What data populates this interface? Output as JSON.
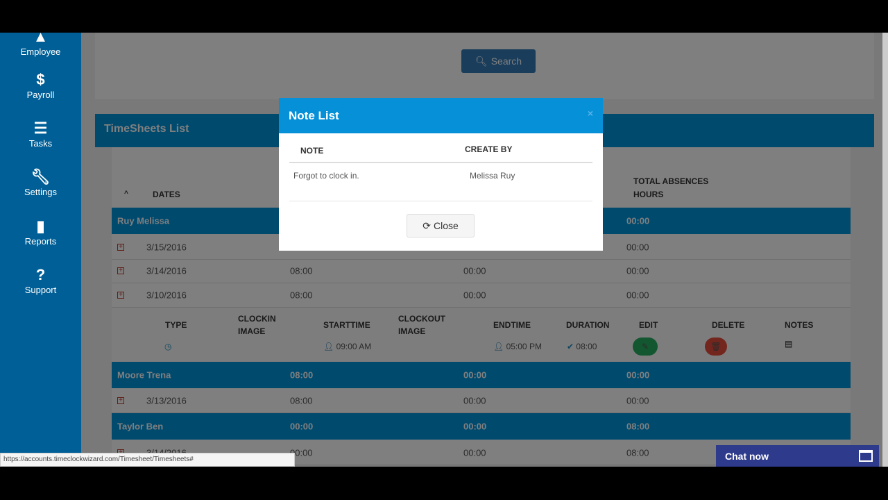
{
  "sidebar": {
    "items": [
      {
        "label": "Employee",
        "icon": "user-icon"
      },
      {
        "label": "Payroll",
        "icon": "dollar-icon"
      },
      {
        "label": "Tasks",
        "icon": "tasks-icon"
      },
      {
        "label": "Settings",
        "icon": "wrench-icon"
      },
      {
        "label": "Reports",
        "icon": "file-icon"
      },
      {
        "label": "Support",
        "icon": "question-icon"
      }
    ]
  },
  "search": {
    "label": "Search"
  },
  "timesheets": {
    "title": "TimeSheets List",
    "headers": {
      "dates": "DATES",
      "total_absences": "TOTAL ABSENCES HOURS"
    },
    "groups": [
      {
        "name": "Ruy Melissa",
        "c1": "",
        "c2": "",
        "c3": "00:00",
        "rows": [
          {
            "date": "3/15/2016",
            "c1": "",
            "c2": "",
            "c3": "00:00"
          },
          {
            "date": "3/14/2016",
            "c1": "08:00",
            "c2": "00:00",
            "c3": "00:00"
          },
          {
            "date": "3/10/2016",
            "c1": "08:00",
            "c2": "00:00",
            "c3": "00:00"
          }
        ]
      },
      {
        "name": "Moore Trena",
        "c1": "08:00",
        "c2": "00:00",
        "c3": "00:00",
        "rows": [
          {
            "date": "3/13/2016",
            "c1": "08:00",
            "c2": "00:00",
            "c3": "00:00"
          }
        ]
      },
      {
        "name": "Taylor Ben",
        "c1": "00:00",
        "c2": "00:00",
        "c3": "08:00",
        "rows": [
          {
            "date": "3/14/2016",
            "c1": "00:00",
            "c2": "00:00",
            "c3": "08:00"
          }
        ]
      }
    ],
    "detail": {
      "headers": {
        "type": "TYPE",
        "clockin_image": "CLOCKIN IMAGE",
        "starttime": "STARTTIME",
        "clockout_image": "CLOCKOUT IMAGE",
        "endtime": "ENDTIME",
        "duration": "DURATION",
        "edit": "EDIT",
        "delete": "DELETE",
        "notes": "NOTES"
      },
      "row": {
        "starttime": "09:00 AM",
        "endtime": "05:00 PM",
        "duration": "08:00"
      }
    }
  },
  "modal": {
    "title": "Note List",
    "close_x": "×",
    "headers": {
      "note": "NOTE",
      "create_by": "CREATE BY"
    },
    "rows": [
      {
        "note": "Forgot to clock in.",
        "create_by": "Melissa Ruy"
      }
    ],
    "close_label": "Close"
  },
  "status_url": "https://accounts.timeclockwizard.com/Timesheet/Timesheets#",
  "chat": {
    "label": "Chat now"
  },
  "colors": {
    "sidebar": "#005f96",
    "primary": "#0095dc",
    "edit": "#27ae60",
    "delete": "#e74c3c"
  }
}
